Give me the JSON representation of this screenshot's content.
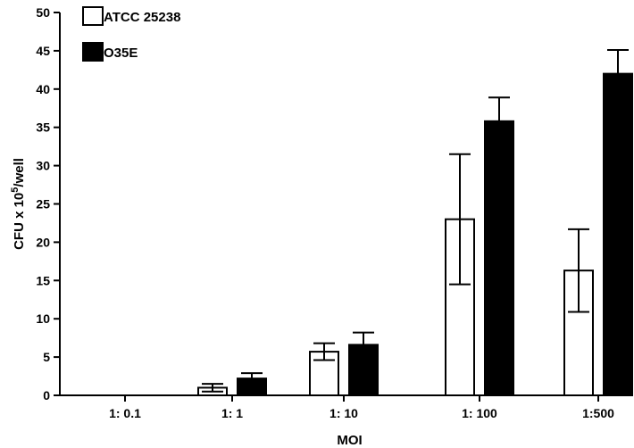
{
  "chart_data": {
    "type": "bar",
    "categories": [
      "1: 0.1",
      "1: 1",
      "1: 10",
      "1: 100",
      "1:500"
    ],
    "xlabel": "MOI",
    "ylabel": {
      "pre": "CFU x 10",
      "sup": "5",
      "post": "/well"
    },
    "ylim": [
      0,
      50
    ],
    "yticks": [
      0,
      5,
      10,
      15,
      20,
      25,
      30,
      35,
      40,
      45,
      50
    ],
    "grid": false,
    "legend_position": "top-left",
    "series": [
      {
        "name": "ATCC 25238",
        "color": "#ffffff",
        "values": [
          0,
          1.0,
          5.7,
          23.0,
          16.3
        ],
        "errors": [
          0,
          0.5,
          1.1,
          8.5,
          5.4
        ]
      },
      {
        "name": "O35E",
        "color": "#000000",
        "values": [
          0,
          2.2,
          6.6,
          35.8,
          42.0
        ],
        "errors": [
          0,
          0.7,
          1.6,
          3.1,
          3.1
        ]
      }
    ]
  }
}
